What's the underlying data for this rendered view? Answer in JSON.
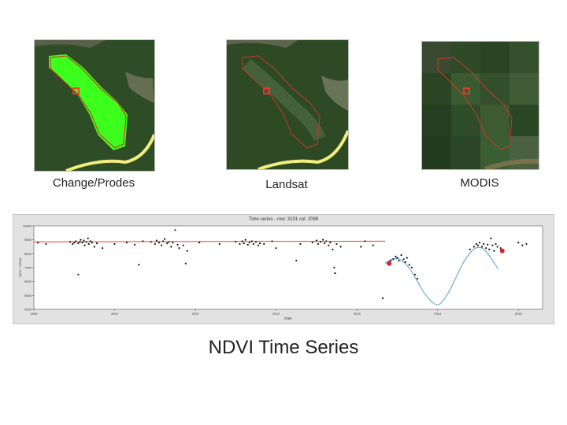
{
  "panels": [
    {
      "caption": "Change/Prodes",
      "style": "prodes"
    },
    {
      "caption": "Landsat",
      "style": "landsat"
    },
    {
      "caption": "MODIS",
      "style": "modis"
    }
  ],
  "slide_title": "NDVI Time Series",
  "colors": {
    "forest": "#2c4a25",
    "change_green": "#3cff1e",
    "polygon_red": "#d42a1a",
    "road_yellow": "#f2ee7a",
    "fit_red": "#e0402a",
    "fit_blue": "#6aaed6",
    "point": "#111111"
  },
  "chart_data": {
    "type": "scatter",
    "title": "Time series - row: 3131 col: 2098",
    "xlabel": "Date",
    "ylabel": "NDVI * 10000",
    "xlim": [
      2009,
      2015.3
    ],
    "ylim": [
      4000,
      10000
    ],
    "x_ticks": [
      "2009",
      "2010",
      "2011",
      "2012",
      "2013",
      "2014",
      "2015"
    ],
    "y_ticks": [
      "4000",
      "5000",
      "6000",
      "7000",
      "8000",
      "9000",
      "10000"
    ],
    "fit_before": {
      "x": [
        2009.0,
        2013.35
      ],
      "y": [
        8850,
        8900
      ]
    },
    "fit_after": {
      "x": [
        2013.35,
        2013.45,
        2013.55,
        2013.65,
        2013.75,
        2013.85,
        2013.95,
        2014.0,
        2014.05,
        2014.15,
        2014.25,
        2014.35,
        2014.45,
        2014.55,
        2014.65,
        2014.75
      ],
      "y": [
        7300,
        7700,
        7600,
        7000,
        6000,
        5000,
        4400,
        4300,
        4450,
        5300,
        6600,
        7700,
        8400,
        8500,
        7800,
        6900
      ]
    },
    "highlight_points": [
      {
        "x": 2013.4,
        "y": 7300
      },
      {
        "x": 2014.8,
        "y": 8200
      }
    ],
    "points": [
      {
        "x": 2009.05,
        "y": 8800
      },
      {
        "x": 2009.15,
        "y": 8700
      },
      {
        "x": 2009.45,
        "y": 8850
      },
      {
        "x": 2009.48,
        "y": 8700
      },
      {
        "x": 2009.5,
        "y": 8800
      },
      {
        "x": 2009.52,
        "y": 8900
      },
      {
        "x": 2009.55,
        "y": 8750
      },
      {
        "x": 2009.57,
        "y": 8850
      },
      {
        "x": 2009.58,
        "y": 9000
      },
      {
        "x": 2009.6,
        "y": 8800
      },
      {
        "x": 2009.62,
        "y": 8950
      },
      {
        "x": 2009.63,
        "y": 8600
      },
      {
        "x": 2009.65,
        "y": 8850
      },
      {
        "x": 2009.67,
        "y": 9100
      },
      {
        "x": 2009.68,
        "y": 8700
      },
      {
        "x": 2009.7,
        "y": 8900
      },
      {
        "x": 2009.72,
        "y": 8800
      },
      {
        "x": 2009.75,
        "y": 8500
      },
      {
        "x": 2009.78,
        "y": 8750
      },
      {
        "x": 2009.55,
        "y": 6500
      },
      {
        "x": 2009.85,
        "y": 8400
      },
      {
        "x": 2010.0,
        "y": 8700
      },
      {
        "x": 2010.15,
        "y": 8800
      },
      {
        "x": 2010.25,
        "y": 8650
      },
      {
        "x": 2010.3,
        "y": 7200
      },
      {
        "x": 2010.35,
        "y": 8900
      },
      {
        "x": 2010.45,
        "y": 8850
      },
      {
        "x": 2010.5,
        "y": 8700
      },
      {
        "x": 2010.52,
        "y": 8950
      },
      {
        "x": 2010.55,
        "y": 8800
      },
      {
        "x": 2010.58,
        "y": 8600
      },
      {
        "x": 2010.6,
        "y": 8900
      },
      {
        "x": 2010.62,
        "y": 9050
      },
      {
        "x": 2010.65,
        "y": 8750
      },
      {
        "x": 2010.67,
        "y": 8850
      },
      {
        "x": 2010.7,
        "y": 8500
      },
      {
        "x": 2010.72,
        "y": 8800
      },
      {
        "x": 2010.75,
        "y": 9700
      },
      {
        "x": 2010.78,
        "y": 8650
      },
      {
        "x": 2010.8,
        "y": 8400
      },
      {
        "x": 2010.85,
        "y": 8600
      },
      {
        "x": 2010.88,
        "y": 7300
      },
      {
        "x": 2010.9,
        "y": 8200
      },
      {
        "x": 2011.05,
        "y": 8800
      },
      {
        "x": 2011.3,
        "y": 8700
      },
      {
        "x": 2011.5,
        "y": 8850
      },
      {
        "x": 2011.55,
        "y": 8700
      },
      {
        "x": 2011.58,
        "y": 8900
      },
      {
        "x": 2011.6,
        "y": 8750
      },
      {
        "x": 2011.62,
        "y": 9000
      },
      {
        "x": 2011.65,
        "y": 8650
      },
      {
        "x": 2011.67,
        "y": 8800
      },
      {
        "x": 2011.7,
        "y": 8900
      },
      {
        "x": 2011.72,
        "y": 8700
      },
      {
        "x": 2011.75,
        "y": 8850
      },
      {
        "x": 2011.78,
        "y": 8600
      },
      {
        "x": 2011.8,
        "y": 8750
      },
      {
        "x": 2011.85,
        "y": 8700
      },
      {
        "x": 2011.95,
        "y": 8900
      },
      {
        "x": 2012.0,
        "y": 8400
      },
      {
        "x": 2012.25,
        "y": 7500
      },
      {
        "x": 2012.3,
        "y": 8700
      },
      {
        "x": 2012.45,
        "y": 8800
      },
      {
        "x": 2012.5,
        "y": 8950
      },
      {
        "x": 2012.52,
        "y": 8700
      },
      {
        "x": 2012.55,
        "y": 8850
      },
      {
        "x": 2012.58,
        "y": 9000
      },
      {
        "x": 2012.6,
        "y": 8750
      },
      {
        "x": 2012.62,
        "y": 8900
      },
      {
        "x": 2012.65,
        "y": 8600
      },
      {
        "x": 2012.67,
        "y": 8800
      },
      {
        "x": 2012.7,
        "y": 8300
      },
      {
        "x": 2012.72,
        "y": 7000
      },
      {
        "x": 2012.73,
        "y": 6600
      },
      {
        "x": 2012.75,
        "y": 8700
      },
      {
        "x": 2012.8,
        "y": 8500
      },
      {
        "x": 2013.05,
        "y": 8500
      },
      {
        "x": 2013.1,
        "y": 8900
      },
      {
        "x": 2013.2,
        "y": 8600
      },
      {
        "x": 2013.32,
        "y": 4800
      },
      {
        "x": 2013.42,
        "y": 7500
      },
      {
        "x": 2013.45,
        "y": 7600
      },
      {
        "x": 2013.48,
        "y": 7800
      },
      {
        "x": 2013.5,
        "y": 7700
      },
      {
        "x": 2013.52,
        "y": 7500
      },
      {
        "x": 2013.55,
        "y": 7900
      },
      {
        "x": 2013.58,
        "y": 7600
      },
      {
        "x": 2013.6,
        "y": 7400
      },
      {
        "x": 2013.62,
        "y": 7700
      },
      {
        "x": 2013.65,
        "y": 7200
      },
      {
        "x": 2013.68,
        "y": 7000
      },
      {
        "x": 2013.72,
        "y": 6500
      },
      {
        "x": 2013.75,
        "y": 6200
      },
      {
        "x": 2014.4,
        "y": 8300
      },
      {
        "x": 2014.45,
        "y": 8500
      },
      {
        "x": 2014.48,
        "y": 8700
      },
      {
        "x": 2014.5,
        "y": 8600
      },
      {
        "x": 2014.52,
        "y": 8800
      },
      {
        "x": 2014.55,
        "y": 8500
      },
      {
        "x": 2014.57,
        "y": 8700
      },
      {
        "x": 2014.6,
        "y": 8400
      },
      {
        "x": 2014.62,
        "y": 8650
      },
      {
        "x": 2014.64,
        "y": 8300
      },
      {
        "x": 2014.66,
        "y": 9100
      },
      {
        "x": 2014.68,
        "y": 8600
      },
      {
        "x": 2014.7,
        "y": 8200
      },
      {
        "x": 2014.72,
        "y": 8700
      },
      {
        "x": 2014.74,
        "y": 8500
      },
      {
        "x": 2014.78,
        "y": 8400
      },
      {
        "x": 2015.0,
        "y": 8800
      },
      {
        "x": 2015.05,
        "y": 8600
      },
      {
        "x": 2015.1,
        "y": 8700
      }
    ]
  }
}
